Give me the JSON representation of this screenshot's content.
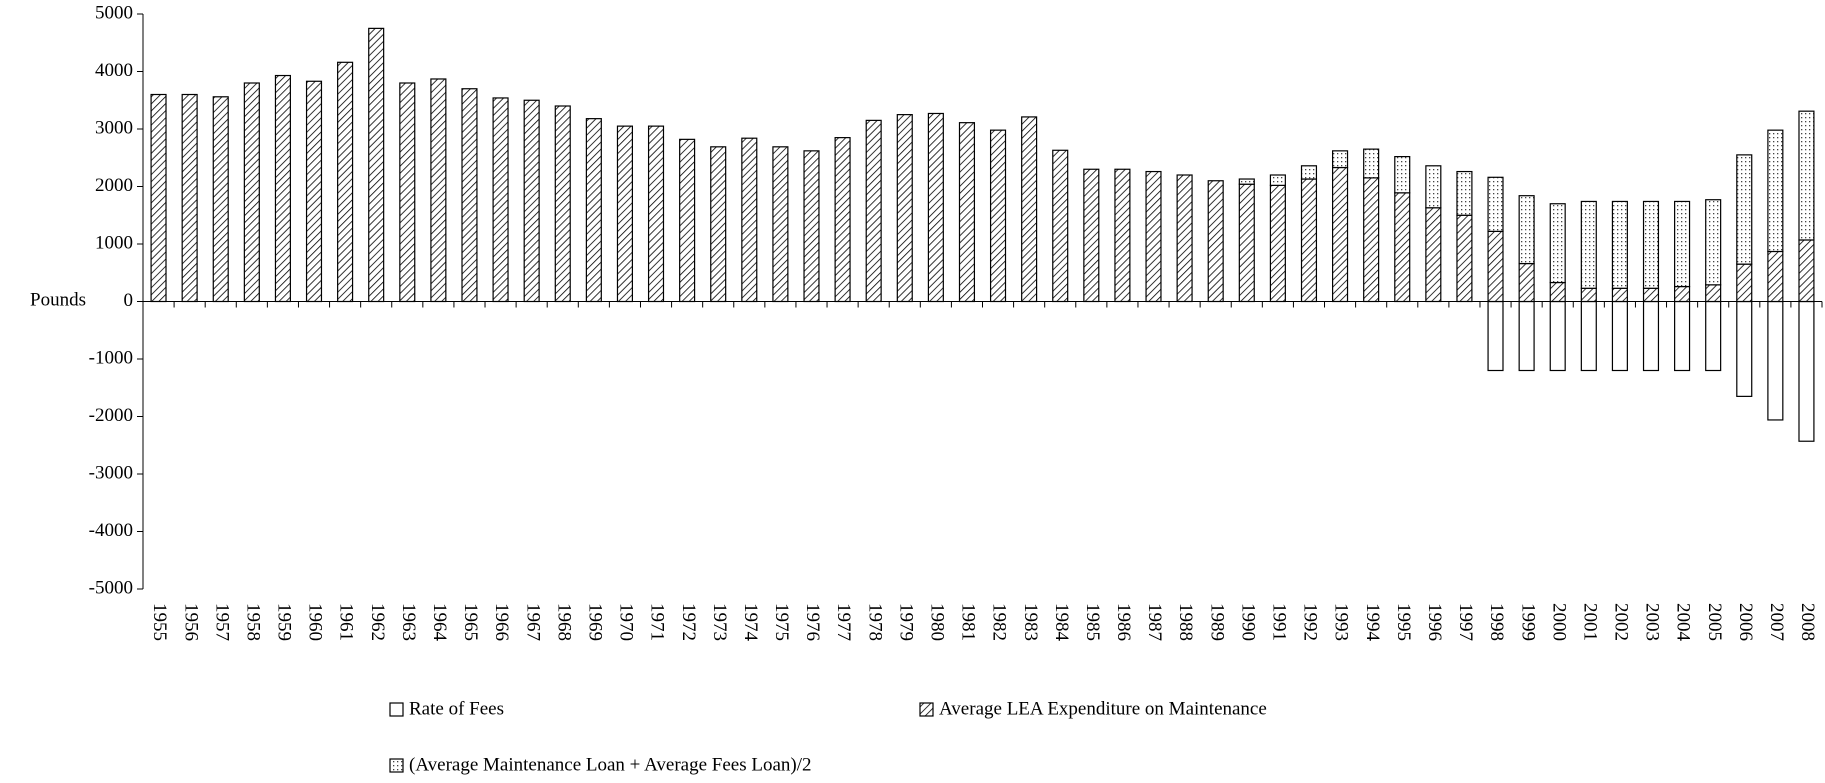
{
  "chart_data": {
    "type": "stacked_bar",
    "ylabel": "Pounds",
    "categories": [
      "1955",
      "1956",
      "1957",
      "1958",
      "1959",
      "1960",
      "1961",
      "1962",
      "1963",
      "1964",
      "1965",
      "1966",
      "1967",
      "1968",
      "1969",
      "1970",
      "1971",
      "1972",
      "1973",
      "1974",
      "1975",
      "1976",
      "1977",
      "1978",
      "1979",
      "1980",
      "1981",
      "1982",
      "1983",
      "1984",
      "1985",
      "1986",
      "1987",
      "1988",
      "1989",
      "1990",
      "1991",
      "1992",
      "1993",
      "1994",
      "1995",
      "1996",
      "1997",
      "1998",
      "1999",
      "2000",
      "2001",
      "2002",
      "2003",
      "2004",
      "2005",
      "2006",
      "2007",
      "2008"
    ],
    "series": [
      {
        "name": "Rate of Fees",
        "color": "#000000",
        "pattern": "none",
        "values": [
          null,
          null,
          null,
          null,
          null,
          null,
          null,
          null,
          null,
          null,
          null,
          null,
          null,
          null,
          null,
          null,
          null,
          null,
          null,
          null,
          null,
          null,
          null,
          null,
          null,
          null,
          null,
          null,
          null,
          null,
          null,
          null,
          null,
          null,
          null,
          null,
          null,
          null,
          null,
          null,
          null,
          null,
          null,
          -1200,
          -1200,
          -1200,
          -1200,
          -1200,
          -1200,
          -1200,
          -1200,
          -1650,
          -2060,
          -2430
        ]
      },
      {
        "name": "Average LEA Expenditure on Maintenance",
        "color": "#000000",
        "pattern": "hatch",
        "values": [
          3600,
          3600,
          3560,
          3800,
          3930,
          3830,
          4160,
          4750,
          3800,
          3870,
          3700,
          3540,
          3500,
          3400,
          3180,
          3050,
          3050,
          2820,
          2690,
          2840,
          2690,
          2620,
          2850,
          3150,
          3250,
          3270,
          3110,
          2980,
          3210,
          2630,
          2300,
          2300,
          2260,
          2200,
          2100,
          2040,
          2020,
          2130,
          2330,
          2150,
          1890,
          1630,
          1500,
          1220,
          660,
          330,
          230,
          230,
          230,
          260,
          290,
          650,
          870,
          1070
        ]
      },
      {
        "name": "(Average Maintenance Loan + Average Fees Loan)/2",
        "color": "#000000",
        "pattern": "dots",
        "values": [
          null,
          null,
          null,
          null,
          null,
          null,
          null,
          null,
          null,
          null,
          null,
          null,
          null,
          null,
          null,
          null,
          null,
          null,
          null,
          null,
          null,
          null,
          null,
          null,
          null,
          null,
          null,
          null,
          null,
          null,
          null,
          null,
          null,
          null,
          null,
          90,
          180,
          230,
          290,
          500,
          630,
          730,
          760,
          940,
          1180,
          1370,
          1510,
          1510,
          1510,
          1480,
          1480,
          1900,
          2110,
          2240
        ]
      }
    ],
    "ylim": [
      -5000,
      5000
    ],
    "yticks": [
      -5000,
      -4000,
      -3000,
      -2000,
      -1000,
      0,
      1000,
      2000,
      3000,
      4000,
      5000
    ],
    "grid": false
  }
}
